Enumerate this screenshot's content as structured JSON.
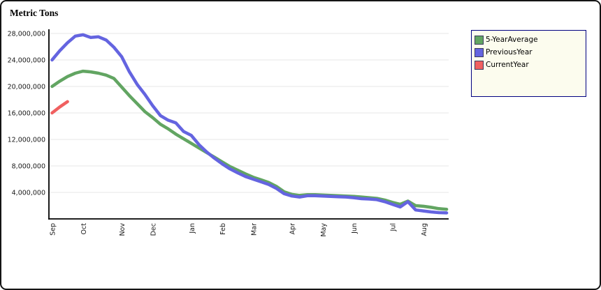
{
  "title": "Metric Tons",
  "legend": {
    "items": [
      {
        "label": "5-YearAverage",
        "color": "#62a562"
      },
      {
        "label": "PreviousYear",
        "color": "#6464e0"
      },
      {
        "label": "CurrentYear",
        "color": "#f06060"
      }
    ]
  },
  "chart_data": {
    "type": "line",
    "title": "Metric Tons",
    "xlabel": "",
    "ylabel": "Metric Tons",
    "x_unit": "week",
    "grid": true,
    "legend_position": "top-right",
    "ylim": [
      0,
      28500000
    ],
    "y_ticks": [
      {
        "v": 28000000,
        "label": "28,000,000"
      },
      {
        "v": 24000000,
        "label": "24,000,000"
      },
      {
        "v": 20000000,
        "label": "20,000,000"
      },
      {
        "v": 16000000,
        "label": "16,000,000"
      },
      {
        "v": 12000000,
        "label": "12,000,000"
      },
      {
        "v": 8000000,
        "label": "8,000,000"
      },
      {
        "v": 4000000,
        "label": "4,000,000"
      }
    ],
    "months": [
      {
        "label": "Sep",
        "week": 0
      },
      {
        "label": "Oct",
        "week": 4
      },
      {
        "label": "Nov",
        "week": 9
      },
      {
        "label": "Dec",
        "week": 13
      },
      {
        "label": "Jan",
        "week": 18
      },
      {
        "label": "Feb",
        "week": 22
      },
      {
        "label": "Mar",
        "week": 26
      },
      {
        "label": "Apr",
        "week": 31
      },
      {
        "label": "May",
        "week": 35
      },
      {
        "label": "Jun",
        "week": 39
      },
      {
        "label": "Jul",
        "week": 44
      },
      {
        "label": "Aug",
        "week": 48
      }
    ],
    "series": [
      {
        "name": "5-YearAverage",
        "color": "#62a562",
        "values": [
          20000000,
          20800000,
          21500000,
          22000000,
          22300000,
          22200000,
          22000000,
          21700000,
          21200000,
          19900000,
          18600000,
          17400000,
          16200000,
          15300000,
          14300000,
          13600000,
          12800000,
          12100000,
          11400000,
          10700000,
          10000000,
          9300000,
          8600000,
          7900000,
          7350000,
          6800000,
          6300000,
          5900000,
          5500000,
          4900000,
          4100000,
          3700000,
          3550000,
          3650000,
          3650000,
          3600000,
          3550000,
          3500000,
          3450000,
          3400000,
          3300000,
          3200000,
          3100000,
          2850000,
          2500000,
          2200000,
          2700000,
          2000000,
          1900000,
          1750000,
          1550000,
          1450000
        ]
      },
      {
        "name": "PreviousYear",
        "color": "#6464e0",
        "values": [
          24000000,
          25400000,
          26600000,
          27600000,
          27800000,
          27400000,
          27500000,
          27000000,
          25900000,
          24500000,
          22200000,
          20300000,
          18800000,
          17100000,
          15600000,
          14900000,
          14500000,
          13200000,
          12600000,
          11200000,
          10100000,
          9150000,
          8300000,
          7550000,
          6950000,
          6400000,
          6000000,
          5600000,
          5200000,
          4600000,
          3800000,
          3450000,
          3300000,
          3500000,
          3500000,
          3450000,
          3400000,
          3350000,
          3300000,
          3200000,
          3050000,
          3000000,
          2900000,
          2600000,
          2200000,
          1800000,
          2600000,
          1350000,
          1200000,
          1050000,
          950000,
          900000
        ]
      },
      {
        "name": "CurrentYear",
        "color": "#f06060",
        "values": [
          16000000,
          16900000,
          17700000
        ]
      }
    ]
  }
}
